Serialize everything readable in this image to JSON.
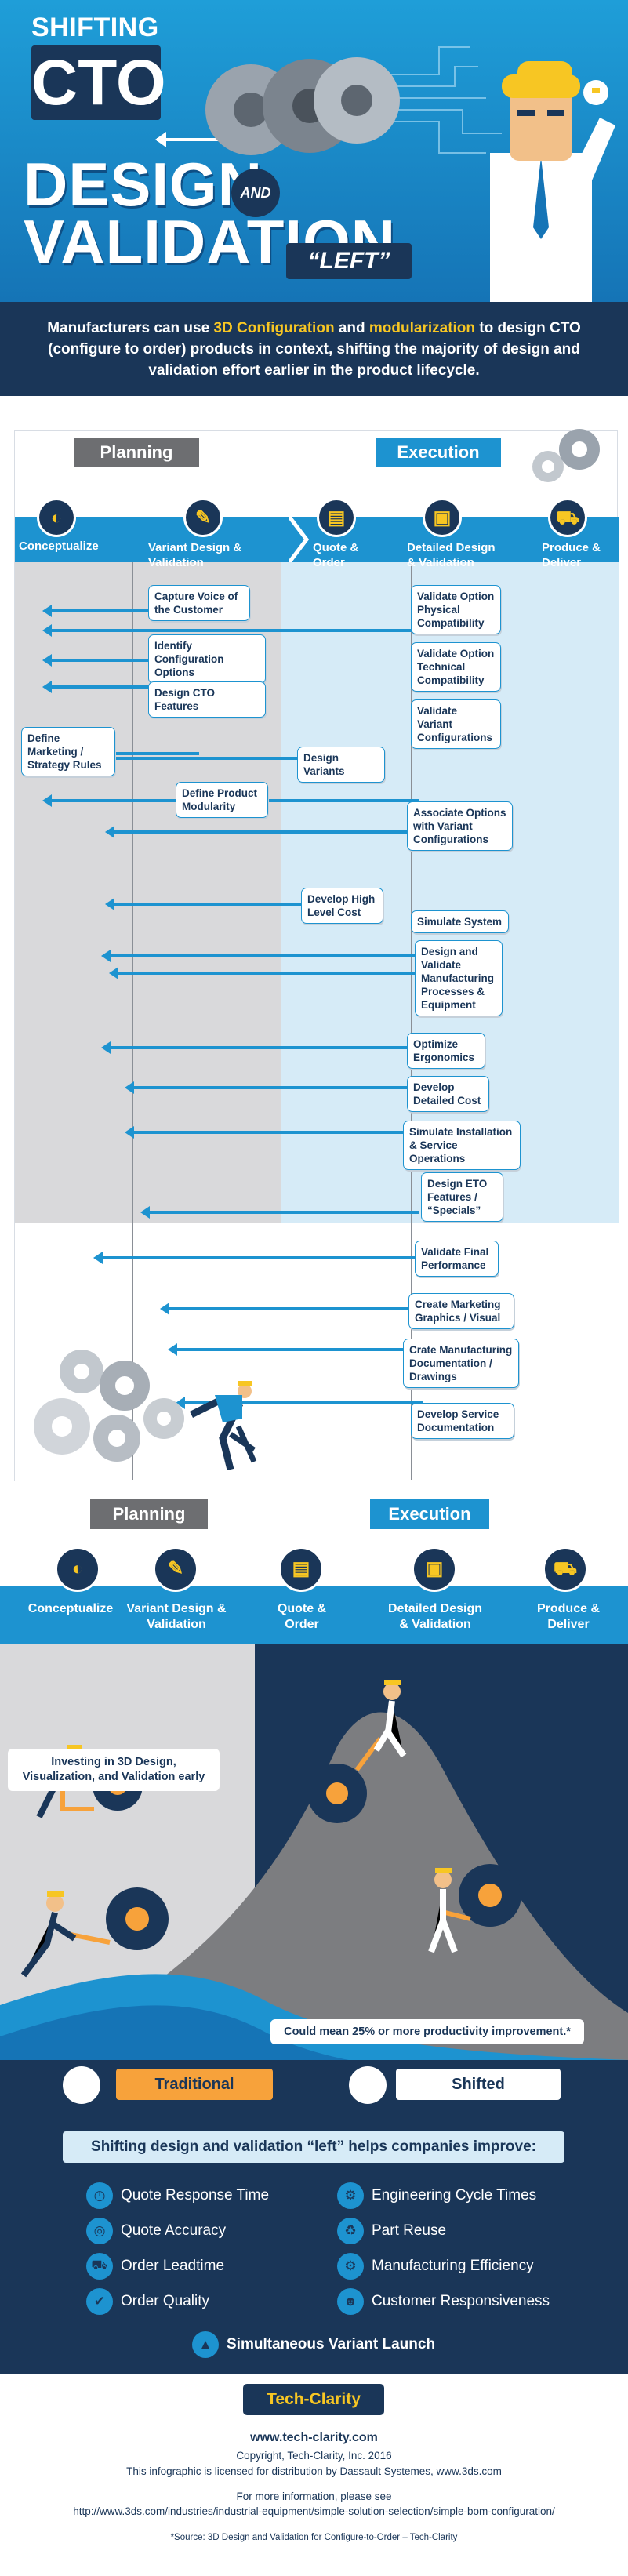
{
  "header": {
    "shifting": "SHIFTING",
    "cto": "CTO",
    "design": "DESIGN",
    "and": "AND",
    "validation": "VALIDATION",
    "left": "“LEFT”"
  },
  "intro": {
    "part1": "Manufacturers can use ",
    "hl1": "3D Configuration",
    "part2": " and ",
    "hl2": "modularization",
    "part3": " to design CTO (configure to order) products in context, shifting the majority of design and validation effort earlier in the product lifecycle."
  },
  "phases": {
    "planning": "Planning",
    "execution": "Execution"
  },
  "steps": [
    {
      "label": "Conceptualize",
      "icon": "lightbulb-icon"
    },
    {
      "label": "Variant Design & Validation",
      "icon": "document-pencil-icon"
    },
    {
      "label": "Quote & Order",
      "icon": "quote-document-icon"
    },
    {
      "label": "Detailed Design & Validation",
      "icon": "detailed-design-icon"
    },
    {
      "label": "Produce & Deliver",
      "icon": "truck-icon"
    }
  ],
  "tasks": [
    "Capture Voice of the Customer",
    "Identify Configuration Options",
    "Design CTO Features",
    "Define Marketing / Strategy Rules",
    "Design Variants",
    "Define Product Modularity",
    "Develop High Level Cost",
    "Validate Option Physical Compatibility",
    "Validate Option Technical Compatibility",
    "Validate Variant Configurations",
    "Associate Options with Variant Configurations",
    "Simulate System",
    "Design and Validate Manufacturing Processes & Equipment",
    "Optimize Ergonomics",
    "Develop Detailed Cost",
    "Simulate Installation & Service Operations",
    "Design ETO Features / “Specials”",
    "Validate Final Performance",
    "Create Marketing Graphics / Visual",
    "Crate Manufacturing Documentation / Drawings",
    "Develop Service Documentation"
  ],
  "scene": {
    "investing": "Investing in 3D Design, Visualization, and Validation early",
    "productivity": "Could mean 25% or more productivity improvement.*"
  },
  "legend": {
    "traditional": "Traditional",
    "shifted": "Shifted"
  },
  "improve": {
    "heading": "Shifting design and validation “left” helps companies improve:",
    "items": [
      {
        "label": "Quote Response Time",
        "icon": "clock-icon"
      },
      {
        "label": "Engineering Cycle Times",
        "icon": "gears-icon"
      },
      {
        "label": "Quote Accuracy",
        "icon": "target-icon"
      },
      {
        "label": "Part Reuse",
        "icon": "recycle-icon"
      },
      {
        "label": "Order Leadtime",
        "icon": "truck-icon"
      },
      {
        "label": "Manufacturing Efficiency",
        "icon": "factory-gear-icon"
      },
      {
        "label": "Order Quality",
        "icon": "checkmark-icon"
      },
      {
        "label": "Customer Responsiveness",
        "icon": "customer-icon"
      }
    ],
    "launch": "Simultaneous Variant Launch"
  },
  "footer": {
    "brand": "Tech-Clarity",
    "url": "www.tech-clarity.com",
    "copyright": "Copyright, Tech-Clarity, Inc. 2016",
    "license": "This infographic is licensed for distribution by Dassault Systemes, www.3ds.com",
    "more": "For more information, please see",
    "link": "http://www.3ds.com/industries/industrial-equipment/simple-solution-selection/simple-bom-configuration/",
    "source": "*Source: 3D Design and Validation for Configure-to-Order – Tech-Clarity"
  },
  "colors": {
    "brand_blue": "#1d93d0",
    "navy": "#1a3658",
    "accent_yellow": "#f7c623",
    "orange": "#f7a23b",
    "planning_gray": "#6d6e71"
  }
}
